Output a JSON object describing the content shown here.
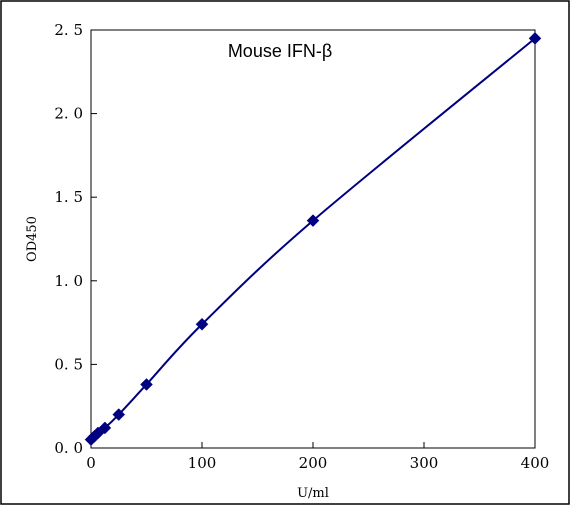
{
  "chart_data": {
    "type": "scatter",
    "title": "Mouse IFN-β",
    "xlabel": "U/ml",
    "ylabel": "OD450",
    "xlim": [
      0,
      400
    ],
    "ylim": [
      0,
      2.5
    ],
    "x_ticks": [
      "0",
      "100",
      "200",
      "300",
      "400"
    ],
    "y_ticks": [
      "0. 0",
      "0. 5",
      "1. 0",
      "1. 5",
      "2. 0",
      "2. 5"
    ],
    "grid": false,
    "legend": "none",
    "series": [
      {
        "color": "#000080",
        "marker": "diamond",
        "connected": "smooth-line",
        "x": [
          0,
          3.125,
          6.25,
          12.5,
          25,
          50,
          100,
          200,
          400
        ],
        "y": [
          0.05,
          0.07,
          0.09,
          0.12,
          0.2,
          0.38,
          0.74,
          1.36,
          2.45
        ]
      }
    ]
  }
}
